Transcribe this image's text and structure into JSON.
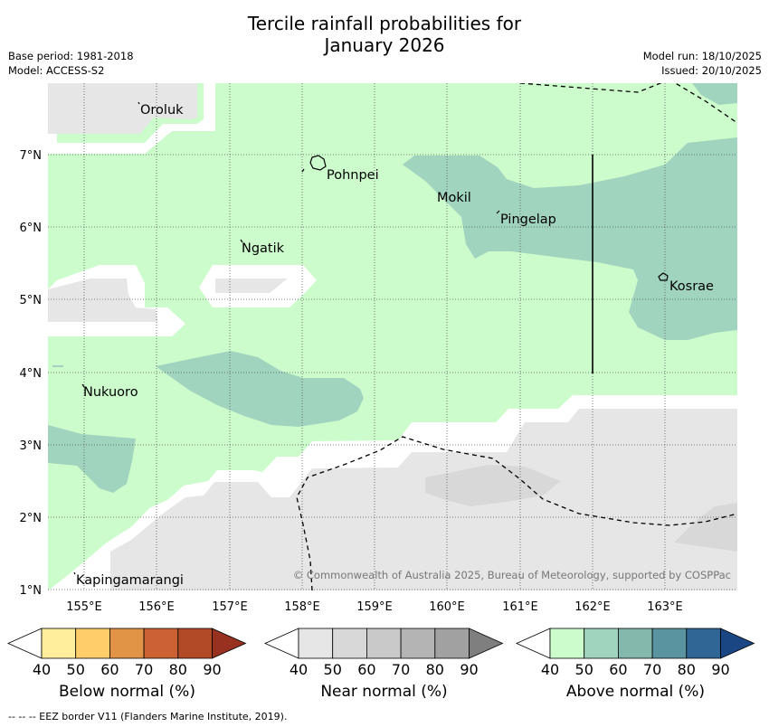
{
  "title_line1": "Tercile rainfall probabilities for",
  "title_line2": "January 2026",
  "base_period": "Base period: 1981-2018",
  "model": "Model: ACCESS-S2",
  "model_run": "Model run: 18/10/2025",
  "issued": "Issued: 20/10/2025",
  "lon_ticks": [
    "155°E",
    "156°E",
    "157°E",
    "158°E",
    "159°E",
    "160°E",
    "161°E",
    "162°E",
    "163°E"
  ],
  "lat_ticks": [
    "7°N",
    "6°N",
    "5°N",
    "4°N",
    "3°N",
    "2°N",
    "1°N"
  ],
  "places": [
    "Oroluk",
    "Pohnpei",
    "Mokil",
    "Pingelap",
    "Ngatik",
    "Kosrae",
    "Nukuoro",
    "Kapingamarangi"
  ],
  "copyright": "© Commonwealth of Australia 2025, Bureau of Meteorology, supported by COSPPac",
  "colorbars": [
    {
      "label": "Below normal (%)",
      "ticks": [
        "40",
        "50",
        "60",
        "70",
        "80",
        "90"
      ],
      "colors": [
        "#ffffff",
        "#ffef9c",
        "#ffce6a",
        "#e29446",
        "#cc6233",
        "#b34a27",
        "#993120"
      ]
    },
    {
      "label": "Near normal (%)",
      "ticks": [
        "40",
        "50",
        "60",
        "70",
        "80",
        "90"
      ],
      "colors": [
        "#ffffff",
        "#e6e6e6",
        "#d8d8d8",
        "#c9c9c9",
        "#b4b4b4",
        "#a1a1a1",
        "#7f7f7f"
      ]
    },
    {
      "label": "Above normal (%)",
      "ticks": [
        "40",
        "50",
        "60",
        "70",
        "80",
        "90"
      ],
      "colors": [
        "#ffffff",
        "#ccfccb",
        "#a0d4be",
        "#84b8ad",
        "#5a94a0",
        "#2f6695",
        "#1a4784"
      ]
    }
  ],
  "eez_note": "--  --  -- EEZ border V11 (Flanders Marine Institute, 2019).",
  "colors": {
    "above50": "#ccfccb",
    "above60": "#a0d4be",
    "near50": "#e6e6e6",
    "near60": "#d8d8d8"
  }
}
